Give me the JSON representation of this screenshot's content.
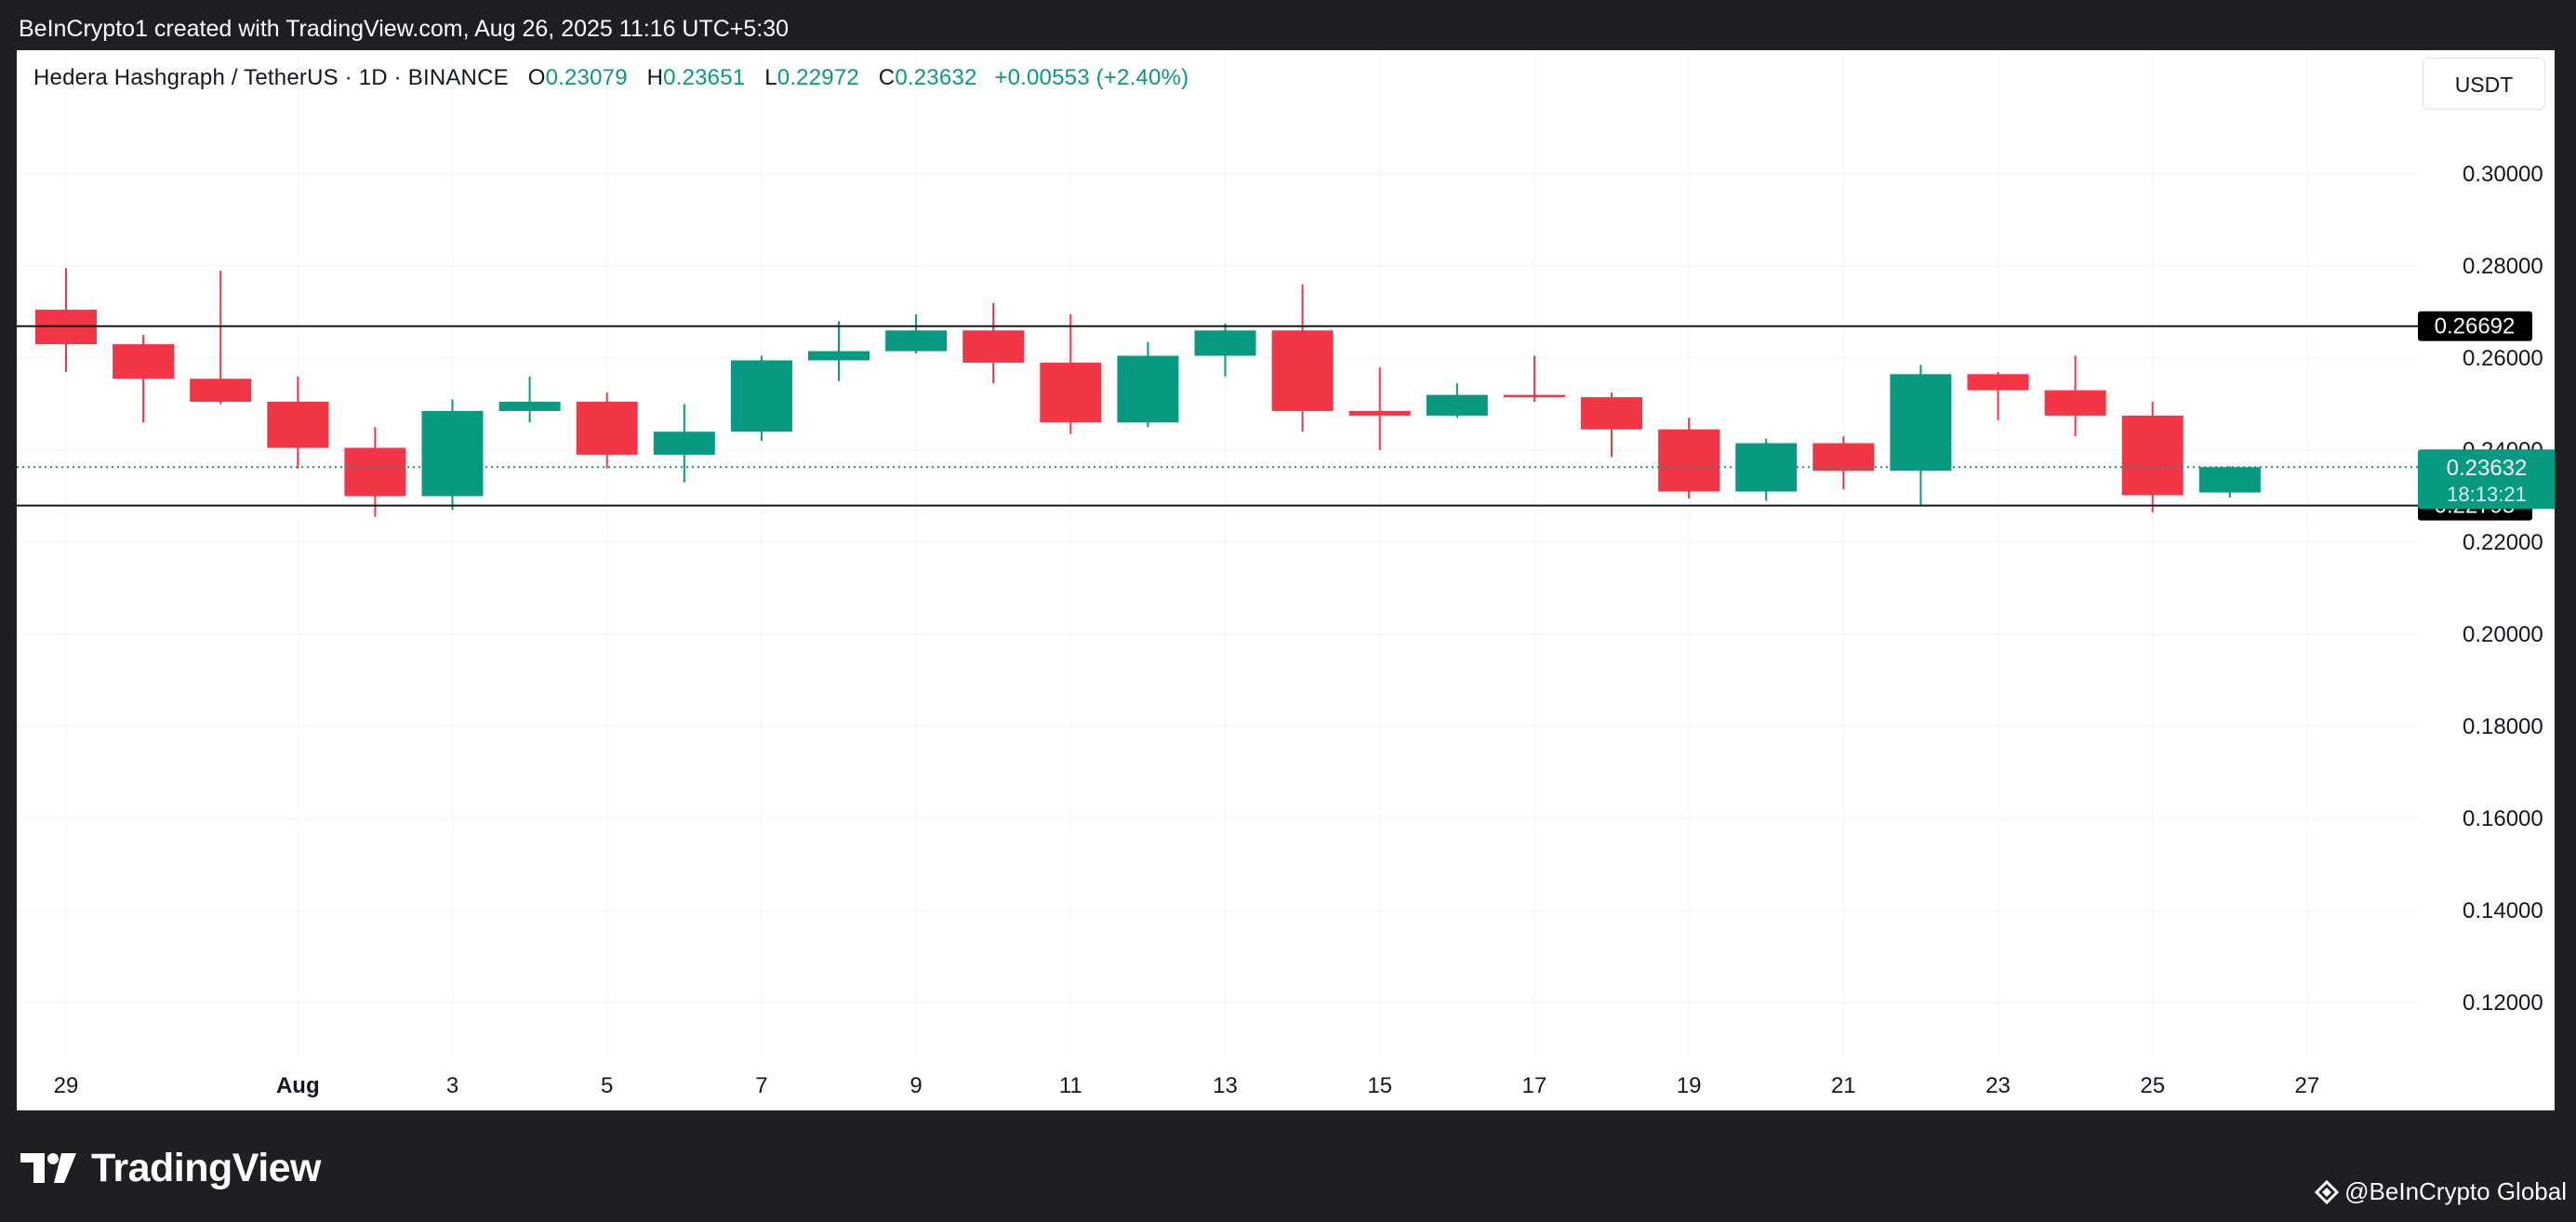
{
  "header": {
    "attribution": "BeInCrypto1 created with TradingView.com, Aug 26, 2025 11:16 UTC+5:30"
  },
  "legend": {
    "symbol": "Hedera Hashgraph / TetherUS · 1D · BINANCE",
    "o_label": "O",
    "o_value": "0.23079",
    "h_label": "H",
    "h_value": "0.23651",
    "l_label": "L",
    "l_value": "0.22972",
    "c_label": "C",
    "c_value": "0.23632",
    "change": "+0.00553 (+2.40%)"
  },
  "price_scale": {
    "unit": "USDT"
  },
  "footer": {
    "brand": "TradingView",
    "watermark": "@BeInCrypto Global"
  },
  "colors": {
    "up": "#089981",
    "down": "#f23645",
    "grid": "#f0f3fa",
    "line": "#131722",
    "text": "#131722",
    "background": "#ffffff",
    "frame": "#1e1f22"
  },
  "chart_data": {
    "type": "candlestick",
    "y_ticks": [
      "0.12000",
      "0.14000",
      "0.16000",
      "0.18000",
      "0.20000",
      "0.22000",
      "0.24000",
      "0.26000",
      "0.28000",
      "0.30000"
    ],
    "y_tick_values": [
      0.12,
      0.14,
      0.16,
      0.18,
      0.2,
      0.22,
      0.24,
      0.26,
      0.28,
      0.3
    ],
    "ylim": [
      0.105,
      0.315
    ],
    "x_ticks": [
      {
        "label": "29",
        "index": 0
      },
      {
        "label": "Aug",
        "index": 3
      },
      {
        "label": "3",
        "index": 5
      },
      {
        "label": "5",
        "index": 7
      },
      {
        "label": "7",
        "index": 9
      },
      {
        "label": "9",
        "index": 11
      },
      {
        "label": "11",
        "index": 13
      },
      {
        "label": "13",
        "index": 15
      },
      {
        "label": "15",
        "index": 17
      },
      {
        "label": "17",
        "index": 19
      },
      {
        "label": "19",
        "index": 21
      },
      {
        "label": "21",
        "index": 23
      },
      {
        "label": "23",
        "index": 25
      },
      {
        "label": "25",
        "index": 27
      },
      {
        "label": "27",
        "index": 29
      }
    ],
    "candles": [
      {
        "date": "Jul 29",
        "o": 0.2705,
        "h": 0.2795,
        "l": 0.257,
        "c": 0.263
      },
      {
        "date": "Jul 30",
        "o": 0.263,
        "h": 0.265,
        "l": 0.246,
        "c": 0.2555
      },
      {
        "date": "Jul 31",
        "o": 0.2555,
        "h": 0.279,
        "l": 0.25,
        "c": 0.2505
      },
      {
        "date": "Aug 1",
        "o": 0.2505,
        "h": 0.256,
        "l": 0.236,
        "c": 0.2405
      },
      {
        "date": "Aug 2",
        "o": 0.2405,
        "h": 0.245,
        "l": 0.2255,
        "c": 0.23
      },
      {
        "date": "Aug 3",
        "o": 0.23,
        "h": 0.251,
        "l": 0.227,
        "c": 0.2485
      },
      {
        "date": "Aug 4",
        "o": 0.2485,
        "h": 0.256,
        "l": 0.246,
        "c": 0.2505
      },
      {
        "date": "Aug 5",
        "o": 0.2505,
        "h": 0.2525,
        "l": 0.236,
        "c": 0.239
      },
      {
        "date": "Aug 6",
        "o": 0.239,
        "h": 0.25,
        "l": 0.233,
        "c": 0.244
      },
      {
        "date": "Aug 7",
        "o": 0.244,
        "h": 0.2605,
        "l": 0.242,
        "c": 0.2595
      },
      {
        "date": "Aug 8",
        "o": 0.2595,
        "h": 0.268,
        "l": 0.255,
        "c": 0.2615
      },
      {
        "date": "Aug 9",
        "o": 0.2615,
        "h": 0.2695,
        "l": 0.261,
        "c": 0.266
      },
      {
        "date": "Aug 10",
        "o": 0.266,
        "h": 0.272,
        "l": 0.2545,
        "c": 0.259
      },
      {
        "date": "Aug 11",
        "o": 0.259,
        "h": 0.2695,
        "l": 0.2435,
        "c": 0.246
      },
      {
        "date": "Aug 12",
        "o": 0.246,
        "h": 0.2635,
        "l": 0.245,
        "c": 0.2605
      },
      {
        "date": "Aug 13",
        "o": 0.2605,
        "h": 0.2675,
        "l": 0.256,
        "c": 0.266
      },
      {
        "date": "Aug 14",
        "o": 0.266,
        "h": 0.276,
        "l": 0.244,
        "c": 0.2485
      },
      {
        "date": "Aug 15",
        "o": 0.2485,
        "h": 0.258,
        "l": 0.24,
        "c": 0.2475
      },
      {
        "date": "Aug 16",
        "o": 0.2475,
        "h": 0.2545,
        "l": 0.247,
        "c": 0.252
      },
      {
        "date": "Aug 17",
        "o": 0.252,
        "h": 0.2605,
        "l": 0.2505,
        "c": 0.2515
      },
      {
        "date": "Aug 18",
        "o": 0.2515,
        "h": 0.2525,
        "l": 0.2385,
        "c": 0.2445
      },
      {
        "date": "Aug 19",
        "o": 0.2445,
        "h": 0.247,
        "l": 0.2295,
        "c": 0.231
      },
      {
        "date": "Aug 20",
        "o": 0.231,
        "h": 0.2425,
        "l": 0.229,
        "c": 0.2415
      },
      {
        "date": "Aug 21",
        "o": 0.2415,
        "h": 0.243,
        "l": 0.2315,
        "c": 0.2355
      },
      {
        "date": "Aug 22",
        "o": 0.2355,
        "h": 0.2585,
        "l": 0.228,
        "c": 0.2565
      },
      {
        "date": "Aug 23",
        "o": 0.2565,
        "h": 0.257,
        "l": 0.2465,
        "c": 0.253
      },
      {
        "date": "Aug 24",
        "o": 0.253,
        "h": 0.2605,
        "l": 0.243,
        "c": 0.2475
      },
      {
        "date": "Aug 25",
        "o": 0.2475,
        "h": 0.2505,
        "l": 0.2265,
        "c": 0.2302
      },
      {
        "date": "Aug 26",
        "o": 0.23079,
        "h": 0.23651,
        "l": 0.22972,
        "c": 0.23632
      }
    ],
    "horizontal_lines": [
      {
        "value": 0.26692,
        "label": "0.26692"
      },
      {
        "value": 0.22795,
        "label": "0.22795"
      }
    ],
    "last_price": {
      "value": 0.23632,
      "label": "0.23632",
      "countdown": "18:13:21"
    }
  }
}
